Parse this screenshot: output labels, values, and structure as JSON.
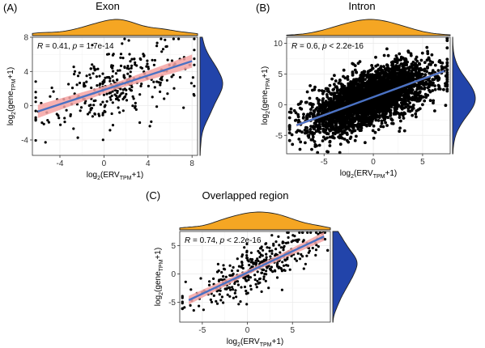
{
  "chart_data": [
    {
      "type": "scatter",
      "panel_label": "(A)",
      "title": "Exon",
      "ylabel_main": "log",
      "ylabel_sub": "2",
      "ylabel_rest": "(gene",
      "ylabel_tpm": "TPM",
      "ylabel_end": "+1)",
      "xlabel_main": "log",
      "xlabel_sub": "2",
      "xlabel_rest": "(ERV",
      "xlabel_tpm": "TPM",
      "xlabel_end": "+1)",
      "stat_r": "R",
      "stat_r_text": " = 0.41, ",
      "stat_p": "p",
      "stat_p_text": " = 1.7e-14",
      "xlim": [
        -6.5,
        8.5
      ],
      "ylim": [
        -5.8,
        8.0
      ],
      "xticks": [
        -4,
        0,
        4,
        8
      ],
      "yticks": [
        -4,
        0,
        4,
        8
      ],
      "xtick_labels": [
        "-4",
        "0",
        "4",
        "8"
      ],
      "ytick_labels": [
        "-4",
        "0",
        "4",
        "8"
      ],
      "fit": {
        "slope": 0.42,
        "intercept": 1.85,
        "x_from": -6.0,
        "x_to": 8.0
      },
      "n_points": 330,
      "point_style": "sparse",
      "x_density_color": "#f5a623",
      "y_density_color": "#2244aa",
      "line_color": "#4a72c4",
      "band_color": "#f4a3a3",
      "grid": true
    },
    {
      "type": "scatter",
      "panel_label": "(B)",
      "title": "Intron",
      "ylabel_main": "log",
      "ylabel_sub": "2",
      "ylabel_rest": "(gene",
      "ylabel_tpm": "TPM",
      "ylabel_end": "+1)",
      "xlabel_main": "log",
      "xlabel_sub": "2",
      "xlabel_rest": "(ERV",
      "xlabel_tpm": "TPM",
      "xlabel_end": "+1)",
      "stat_r": "R",
      "stat_r_text": " = 0.6, ",
      "stat_p": "p",
      "stat_p_text": " < 2.2e-16",
      "xlim": [
        -8.8,
        7.8
      ],
      "ylim": [
        -8.0,
        11.0
      ],
      "xticks": [
        -5,
        0,
        5
      ],
      "yticks": [
        -5,
        0,
        5,
        10
      ],
      "xtick_labels": [
        "-5",
        "0",
        "5"
      ],
      "ytick_labels": [
        "-5",
        "0",
        "5",
        "10"
      ],
      "fit": {
        "slope": 0.59,
        "intercept": 1.25,
        "x_from": -7.8,
        "x_to": 7.2
      },
      "n_points": 3500,
      "point_style": "dense",
      "x_density_color": "#f5a623",
      "y_density_color": "#2244aa",
      "line_color": "#4a72c4",
      "band_color": "#f4a3a3",
      "grid": true
    },
    {
      "type": "scatter",
      "panel_label": "(C)",
      "title": "Overlapped region",
      "ylabel_main": "log",
      "ylabel_sub": "2",
      "ylabel_rest": "(gene",
      "ylabel_tpm": "TPM",
      "ylabel_end": "+1)",
      "xlabel_main": "log",
      "xlabel_sub": "2",
      "xlabel_rest": "(ERV",
      "xlabel_tpm": "TPM",
      "xlabel_end": "+1)",
      "stat_r": "R",
      "stat_r_text": " = 0.74, ",
      "stat_p": "p",
      "stat_p_text": " < 2.2e-16",
      "xlim": [
        -7.5,
        9.2
      ],
      "ylim": [
        -8.5,
        7.5
      ],
      "xticks": [
        -5,
        0,
        5
      ],
      "yticks": [
        -5,
        0,
        5
      ],
      "xtick_labels": [
        "-5",
        "0",
        "5"
      ],
      "ytick_labels": [
        "-5",
        "0",
        "5"
      ],
      "fit": {
        "slope": 0.75,
        "intercept": 0.25,
        "x_from": -6.5,
        "x_to": 8.5
      },
      "n_points": 360,
      "point_style": "sparse",
      "x_density_color": "#f5a623",
      "y_density_color": "#2244aa",
      "line_color": "#4a72c4",
      "band_color": "#f4a3a3",
      "grid": true
    }
  ]
}
